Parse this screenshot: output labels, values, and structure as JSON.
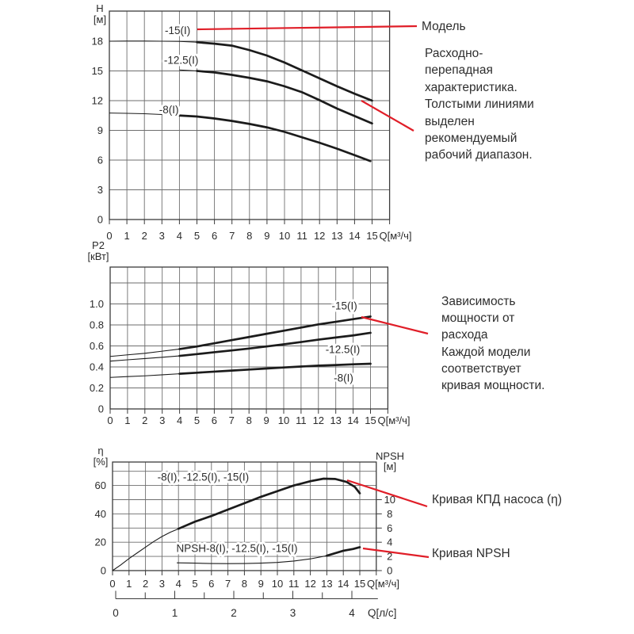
{
  "colors": {
    "curve": "#1b1b1b",
    "grid": "#6e6e6e",
    "border": "#3b3b3b",
    "text": "#2b2b2b",
    "annotation_line": "#e01e28",
    "background": "#ffffff"
  },
  "annotations": {
    "model_label": "Модель",
    "flow_head_lines": [
      "Расходно-",
      "перепадная",
      "характеристика.",
      "Толстыми линиями",
      "выделен",
      "рекомендуемый",
      "рабочий диапазон."
    ],
    "power_lines": [
      "Зависимость",
      "мощности от",
      "расхода",
      "Каждой модели",
      "соответствует",
      "кривая мощности."
    ],
    "efficiency_label": "Кривая КПД насоса (η)",
    "npsh_label": "Кривая NPSH"
  },
  "chart_data": [
    {
      "id": "head",
      "type": "line",
      "title": "Напорная характеристика",
      "xlabel": "Q [м³/ч]",
      "ylabel": "H [м]",
      "axis_title_lines": [
        "H",
        "[м]"
      ],
      "x_unit_label": "Q[м³/ч]",
      "xlim": [
        0,
        16
      ],
      "ylim": [
        0,
        21
      ],
      "x_gridlines": [
        1,
        2,
        3,
        4,
        5,
        6,
        7,
        8,
        9,
        10,
        11,
        12,
        13,
        14,
        15
      ],
      "y_gridlines": [
        3,
        6,
        9,
        12,
        15,
        18
      ],
      "x_tick_labels": [
        "0",
        "1",
        "2",
        "3",
        "4",
        "5",
        "6",
        "7",
        "8",
        "9",
        "10",
        "11",
        "12",
        "13",
        "14",
        "15"
      ],
      "y_ticks": [
        {
          "v": 0,
          "label": "0"
        },
        {
          "v": 3,
          "label": "3"
        },
        {
          "v": 6,
          "label": "6"
        },
        {
          "v": 9,
          "label": "9"
        },
        {
          "v": 12,
          "label": "12"
        },
        {
          "v": 15,
          "label": "15"
        },
        {
          "v": 18,
          "label": "18"
        }
      ],
      "curve_labels": [
        {
          "text": "-15(I)",
          "x": 3.9,
          "y": 19.1
        },
        {
          "text": "-12.5(I)",
          "x": 4.1,
          "y": 16.1
        },
        {
          "text": "-8(I)",
          "x": 3.4,
          "y": 11.1
        }
      ],
      "series": [
        {
          "name": "-15(I)",
          "thick_from": 4.5,
          "points": [
            [
              0,
              18
            ],
            [
              1,
              18.02
            ],
            [
              2,
              18.02
            ],
            [
              3,
              18
            ],
            [
              4,
              17.98
            ],
            [
              5,
              17.9
            ],
            [
              6,
              17.75
            ],
            [
              7,
              17.55
            ],
            [
              8,
              17.1
            ],
            [
              9,
              16.55
            ],
            [
              10,
              15.85
            ],
            [
              11,
              15.05
            ],
            [
              12,
              14.25
            ],
            [
              13,
              13.45
            ],
            [
              14,
              12.7
            ],
            [
              15,
              12.0
            ]
          ]
        },
        {
          "name": "-12.5(I)",
          "thick_from": 4.2,
          "points": [
            [
              4,
              15.1
            ],
            [
              5,
              15.0
            ],
            [
              6,
              14.85
            ],
            [
              7,
              14.6
            ],
            [
              8,
              14.3
            ],
            [
              9,
              13.95
            ],
            [
              10,
              13.45
            ],
            [
              11,
              12.85
            ],
            [
              12,
              12.05
            ],
            [
              13,
              11.2
            ],
            [
              14,
              10.45
            ],
            [
              15,
              9.7
            ]
          ]
        },
        {
          "name": "-8(I)",
          "thick_from": 4,
          "points": [
            [
              0,
              10.75
            ],
            [
              1,
              10.72
            ],
            [
              2,
              10.68
            ],
            [
              3,
              10.6
            ],
            [
              4,
              10.5
            ],
            [
              5,
              10.4
            ],
            [
              6,
              10.2
            ],
            [
              7,
              9.95
            ],
            [
              8,
              9.65
            ],
            [
              9,
              9.3
            ],
            [
              10,
              8.85
            ],
            [
              11,
              8.3
            ],
            [
              12,
              7.75
            ],
            [
              13,
              7.15
            ],
            [
              14,
              6.5
            ],
            [
              14.9,
              5.9
            ]
          ]
        }
      ]
    },
    {
      "id": "power",
      "type": "line",
      "title": "Зависимость мощности от расхода",
      "xlabel": "Q [м³/ч]",
      "ylabel": "P2 [кВт]",
      "axis_title_lines": [
        "P2",
        "[кВт]"
      ],
      "x_unit_label": "Q[м³/ч]",
      "xlim": [
        0,
        16
      ],
      "ylim": [
        0,
        1.35
      ],
      "x_gridlines": [
        1,
        2,
        3,
        4,
        5,
        6,
        7,
        8,
        9,
        10,
        11,
        12,
        13,
        14,
        15
      ],
      "y_gridlines": [
        0.2,
        0.4,
        0.6,
        0.8,
        1.0,
        1.2
      ],
      "x_tick_labels": [
        "0",
        "1",
        "2",
        "3",
        "4",
        "5",
        "6",
        "7",
        "8",
        "9",
        "10",
        "11",
        "12",
        "13",
        "14",
        "15"
      ],
      "y_ticks": [
        {
          "v": 0,
          "label": "0"
        },
        {
          "v": 0.2,
          "label": "0.2"
        },
        {
          "v": 0.4,
          "label": "0.4"
        },
        {
          "v": 0.6,
          "label": "0.6"
        },
        {
          "v": 0.8,
          "label": "0.8"
        },
        {
          "v": 1.0,
          "label": "1.0"
        }
      ],
      "curve_labels": [
        {
          "text": "-15(I)",
          "x": 13.5,
          "y": 0.98
        },
        {
          "text": "-12.5(I)",
          "x": 13.4,
          "y": 0.565
        },
        {
          "text": "-8(I)",
          "x": 13.45,
          "y": 0.295
        }
      ],
      "series": [
        {
          "name": "-15(I)",
          "thick_from": 4,
          "points": [
            [
              0,
              0.5
            ],
            [
              1,
              0.515
            ],
            [
              2,
              0.53
            ],
            [
              3,
              0.55
            ],
            [
              4,
              0.57
            ],
            [
              5,
              0.595
            ],
            [
              6,
              0.625
            ],
            [
              7,
              0.655
            ],
            [
              8,
              0.685
            ],
            [
              9,
              0.715
            ],
            [
              10,
              0.745
            ],
            [
              11,
              0.775
            ],
            [
              12,
              0.805
            ],
            [
              13,
              0.83
            ],
            [
              14,
              0.855
            ],
            [
              15,
              0.88
            ]
          ]
        },
        {
          "name": "-12.5(I)",
          "thick_from": 4,
          "points": [
            [
              0,
              0.455
            ],
            [
              1,
              0.468
            ],
            [
              2,
              0.48
            ],
            [
              3,
              0.492
            ],
            [
              4,
              0.505
            ],
            [
              5,
              0.522
            ],
            [
              6,
              0.54
            ],
            [
              7,
              0.557
            ],
            [
              8,
              0.575
            ],
            [
              9,
              0.595
            ],
            [
              10,
              0.615
            ],
            [
              11,
              0.637
            ],
            [
              12,
              0.66
            ],
            [
              13,
              0.68
            ],
            [
              14,
              0.7
            ],
            [
              15,
              0.725
            ]
          ]
        },
        {
          "name": "-8(I)",
          "thick_from": 4,
          "points": [
            [
              0,
              0.3
            ],
            [
              1,
              0.308
            ],
            [
              2,
              0.315
            ],
            [
              3,
              0.325
            ],
            [
              4,
              0.335
            ],
            [
              5,
              0.345
            ],
            [
              6,
              0.355
            ],
            [
              7,
              0.365
            ],
            [
              8,
              0.375
            ],
            [
              9,
              0.385
            ],
            [
              10,
              0.395
            ],
            [
              11,
              0.404
            ],
            [
              12,
              0.412
            ],
            [
              13,
              0.418
            ],
            [
              14,
              0.425
            ],
            [
              15,
              0.43
            ]
          ]
        }
      ]
    },
    {
      "id": "eff",
      "type": "line",
      "title": "КПД и NPSH",
      "xlabel": "Q [м³/ч]",
      "ylabel": "η [%]",
      "axis_title_lines": [
        "η",
        "[%]"
      ],
      "x_unit_label": "Q[м³/ч]",
      "xlim": [
        0,
        16
      ],
      "ylim": [
        0,
        76.5
      ],
      "x_gridlines": [
        1,
        2,
        3,
        4,
        5,
        6,
        7,
        8,
        9,
        10,
        11,
        12,
        13,
        14,
        15
      ],
      "y_gridlines": [
        10,
        20,
        30,
        40,
        50,
        60,
        70
      ],
      "x_tick_labels": [
        "0",
        "1",
        "2",
        "3",
        "4",
        "5",
        "6",
        "7",
        "8",
        "9",
        "10",
        "11",
        "12",
        "13",
        "14",
        "15"
      ],
      "y_ticks": [
        {
          "v": 0,
          "label": "0"
        },
        {
          "v": 20,
          "label": "20"
        },
        {
          "v": 40,
          "label": "40"
        },
        {
          "v": 60,
          "label": "60"
        }
      ],
      "curve_labels": [
        {
          "text": "-8(I), -12.5(I), -15(I)",
          "x": 5.5,
          "y": 66
        },
        {
          "text": "NPSH-8(I), -12.5(I), -15(I)",
          "x": 7.55,
          "y": 15.6
        }
      ],
      "right_axis": {
        "label": "NPSH [м]",
        "title_lines": [
          "NPSH",
          "[м]"
        ],
        "values": [
          0,
          2,
          4,
          6,
          8,
          10
        ],
        "tick_labels": [
          "0",
          "2",
          "4",
          "6",
          "8",
          "10"
        ],
        "eta_per_unit": 5
      },
      "secondary_axis": {
        "unit_label": "Q[л/с]",
        "tick_labels": [
          "0",
          "1",
          "2",
          "3",
          "4"
        ]
      },
      "series": [
        {
          "name": "efficiency",
          "thick_from": 4,
          "points": [
            [
              0,
              0
            ],
            [
              0.5,
              4
            ],
            [
              1,
              8.5
            ],
            [
              1.5,
              12.5
            ],
            [
              2,
              16.5
            ],
            [
              2.5,
              20.5
            ],
            [
              3,
              24
            ],
            [
              3.5,
              27
            ],
            [
              4,
              29.5
            ],
            [
              5,
              34.5
            ],
            [
              6,
              38.5
            ],
            [
              7,
              43
            ],
            [
              8,
              47.5
            ],
            [
              9,
              52
            ],
            [
              10,
              56
            ],
            [
              11,
              60
            ],
            [
              12,
              63
            ],
            [
              12.8,
              64.8
            ],
            [
              13.5,
              64.6
            ],
            [
              14.2,
              62.5
            ],
            [
              14.7,
              59
            ],
            [
              15,
              54.5
            ]
          ]
        },
        {
          "name": "NPSH",
          "thick_from": 13,
          "y_scale": 5,
          "points": [
            [
              3.9,
              1.1
            ],
            [
              5,
              1.05
            ],
            [
              6,
              1.0
            ],
            [
              7,
              0.98
            ],
            [
              8,
              1.0
            ],
            [
              9,
              1.05
            ],
            [
              10,
              1.15
            ],
            [
              11,
              1.35
            ],
            [
              12,
              1.65
            ],
            [
              13,
              2.1
            ],
            [
              14,
              2.8
            ],
            [
              14.6,
              3.05
            ],
            [
              15,
              3.3
            ]
          ]
        }
      ]
    }
  ]
}
